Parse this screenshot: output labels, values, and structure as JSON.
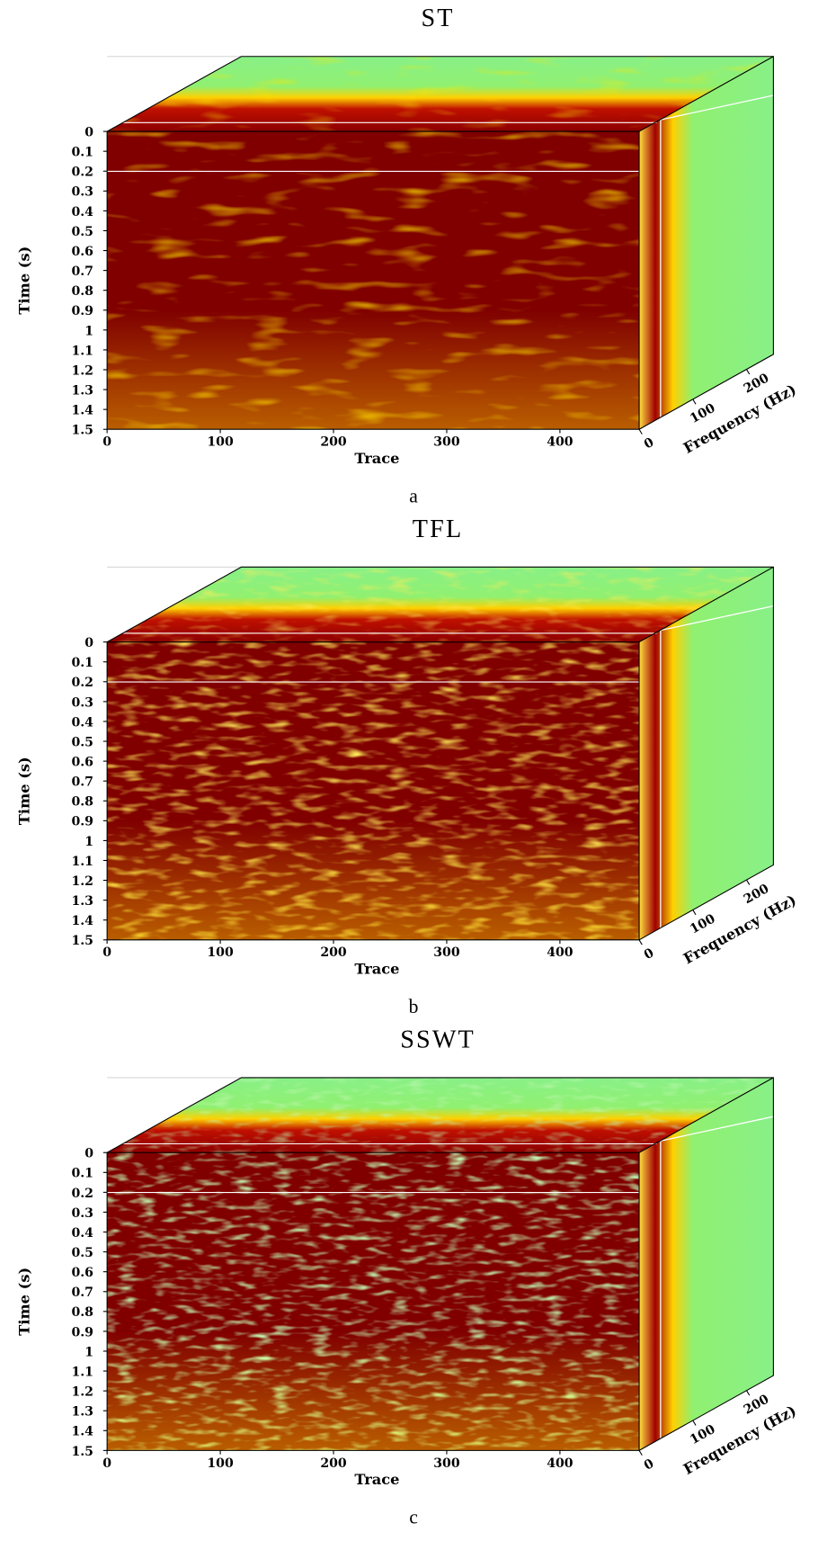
{
  "chart_data": [
    {
      "type": "cube",
      "title": "ST",
      "caption": "a",
      "xlabel": "Trace",
      "ylabel": "Time (s)",
      "zlabel": "Frequency (Hz)",
      "xlim": [
        0,
        470
      ],
      "xticks": [
        0,
        100,
        200,
        300,
        400
      ],
      "ylim": [
        0,
        1.5
      ],
      "yticks": [
        0,
        0.1,
        0.2,
        0.3,
        0.4,
        0.5,
        0.6,
        0.7,
        0.8,
        0.9,
        1,
        1.1,
        1.2,
        1.3,
        1.4,
        1.5
      ],
      "zlim": [
        0,
        250
      ],
      "zticks": [
        0,
        100,
        200
      ]
    },
    {
      "type": "cube",
      "title": "TFL",
      "caption": "b",
      "xlabel": "Trace",
      "ylabel": "Time (s)",
      "zlabel": "Frequency (Hz)",
      "xlim": [
        0,
        470
      ],
      "xticks": [
        0,
        100,
        200,
        300,
        400
      ],
      "ylim": [
        0,
        1.5
      ],
      "yticks": [
        0,
        0.1,
        0.2,
        0.3,
        0.4,
        0.5,
        0.6,
        0.7,
        0.8,
        0.9,
        1,
        1.1,
        1.2,
        1.3,
        1.4,
        1.5
      ],
      "zlim": [
        0,
        250
      ],
      "zticks": [
        0,
        100,
        200
      ]
    },
    {
      "type": "cube",
      "title": "SSWT",
      "caption": "c",
      "xlabel": "Trace",
      "ylabel": "Time (s)",
      "zlabel": "Frequency (Hz)",
      "xlim": [
        0,
        470
      ],
      "xticks": [
        0,
        100,
        200,
        300,
        400
      ],
      "ylim": [
        0,
        1.5
      ],
      "yticks": [
        0,
        0.1,
        0.2,
        0.3,
        0.4,
        0.5,
        0.6,
        0.7,
        0.8,
        0.9,
        1,
        1.1,
        1.2,
        1.3,
        1.4,
        1.5
      ],
      "zlim": [
        0,
        250
      ],
      "zticks": [
        0,
        100,
        200
      ]
    }
  ]
}
